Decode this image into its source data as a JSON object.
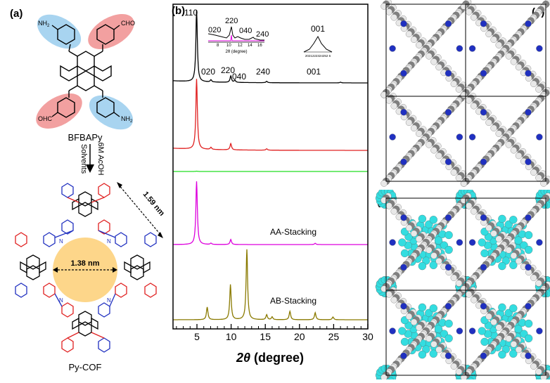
{
  "panel_a": {
    "label": "(a)",
    "monomer_name": "BFBAPy",
    "nh2": "NH",
    "nh2_sub": "2",
    "cho": "CHO",
    "ohc": "OHC",
    "reaction_line1": "6M AcOH",
    "reaction_line2": "Solvents",
    "pore_size": "1.38 nm",
    "spacing": "1.59 nm",
    "cof_name": "Py-COF",
    "n_label": "N"
  },
  "panel_b": {
    "label": "(b)",
    "peak_labels": [
      "110",
      "020",
      "220",
      "040",
      "240",
      "001"
    ],
    "inset1_labels": [
      "020",
      "220",
      "040",
      "240"
    ],
    "inset1_xlabel": "2θ (degree)",
    "inset1_ticks": [
      "8",
      "10",
      "12",
      "14",
      "16"
    ],
    "inset2_label": "001",
    "inset2_ticks": "2021222324252 6",
    "aa_label": "AA-Stacking",
    "ab_label": "AB-Stacking",
    "xlabel_theta": "2θ",
    "xlabel_unit": " (degree)",
    "xticks": [
      "5",
      "10",
      "15",
      "20",
      "25",
      "30"
    ]
  },
  "panel_c": {
    "label": "(c)"
  },
  "panel_d": {
    "label": "(d)"
  },
  "colors": {
    "experimental": "#000000",
    "refined": "#e02020",
    "difference": "#22dd22",
    "aa": "#dd00dd",
    "ab": "#8a7a00",
    "amine_highlight": "#a8d4f0",
    "aldehyde_highlight": "#f2a0a0",
    "pore": "#fdd68a",
    "carbon": "#808080",
    "nitrogen": "#2030c0",
    "hydrogen": "#e8e8e8",
    "layer_b": "#33dde0"
  },
  "chart_data": {
    "type": "line",
    "x_range": [
      1.5,
      30
    ],
    "xlabel": "2θ (degree)",
    "xticks": [
      5,
      10,
      15,
      20,
      25,
      30
    ],
    "series": [
      {
        "name": "",
        "color": "#000000",
        "peaks": [
          [
            4.95,
            1.0
          ],
          [
            7.05,
            0.03
          ],
          [
            9.95,
            0.09
          ],
          [
            10.55,
            0.03
          ],
          [
            15.2,
            0.02
          ],
          [
            26.0,
            0.01
          ]
        ]
      },
      {
        "name": "",
        "color": "#e02020",
        "peaks": [
          [
            4.95,
            1.0
          ],
          [
            7.05,
            0.03
          ],
          [
            9.95,
            0.09
          ],
          [
            15.2,
            0.02
          ]
        ]
      },
      {
        "name": "",
        "color": "#22dd22",
        "peaks": [
          [
            4.95,
            0.08
          ]
        ]
      },
      {
        "name": "AA-Stacking",
        "color": "#dd00dd",
        "peaks": [
          [
            4.95,
            1.0
          ],
          [
            7.05,
            0.02
          ],
          [
            9.95,
            0.08
          ],
          [
            22.3,
            0.02
          ]
        ]
      },
      {
        "name": "AB-Stacking",
        "color": "#8a7a00",
        "peaks": [
          [
            6.5,
            0.18
          ],
          [
            9.9,
            0.5
          ],
          [
            12.3,
            1.0
          ],
          [
            15.2,
            0.07
          ],
          [
            16.0,
            0.04
          ],
          [
            18.6,
            0.12
          ],
          [
            22.3,
            0.1
          ],
          [
            24.9,
            0.04
          ]
        ]
      }
    ]
  }
}
